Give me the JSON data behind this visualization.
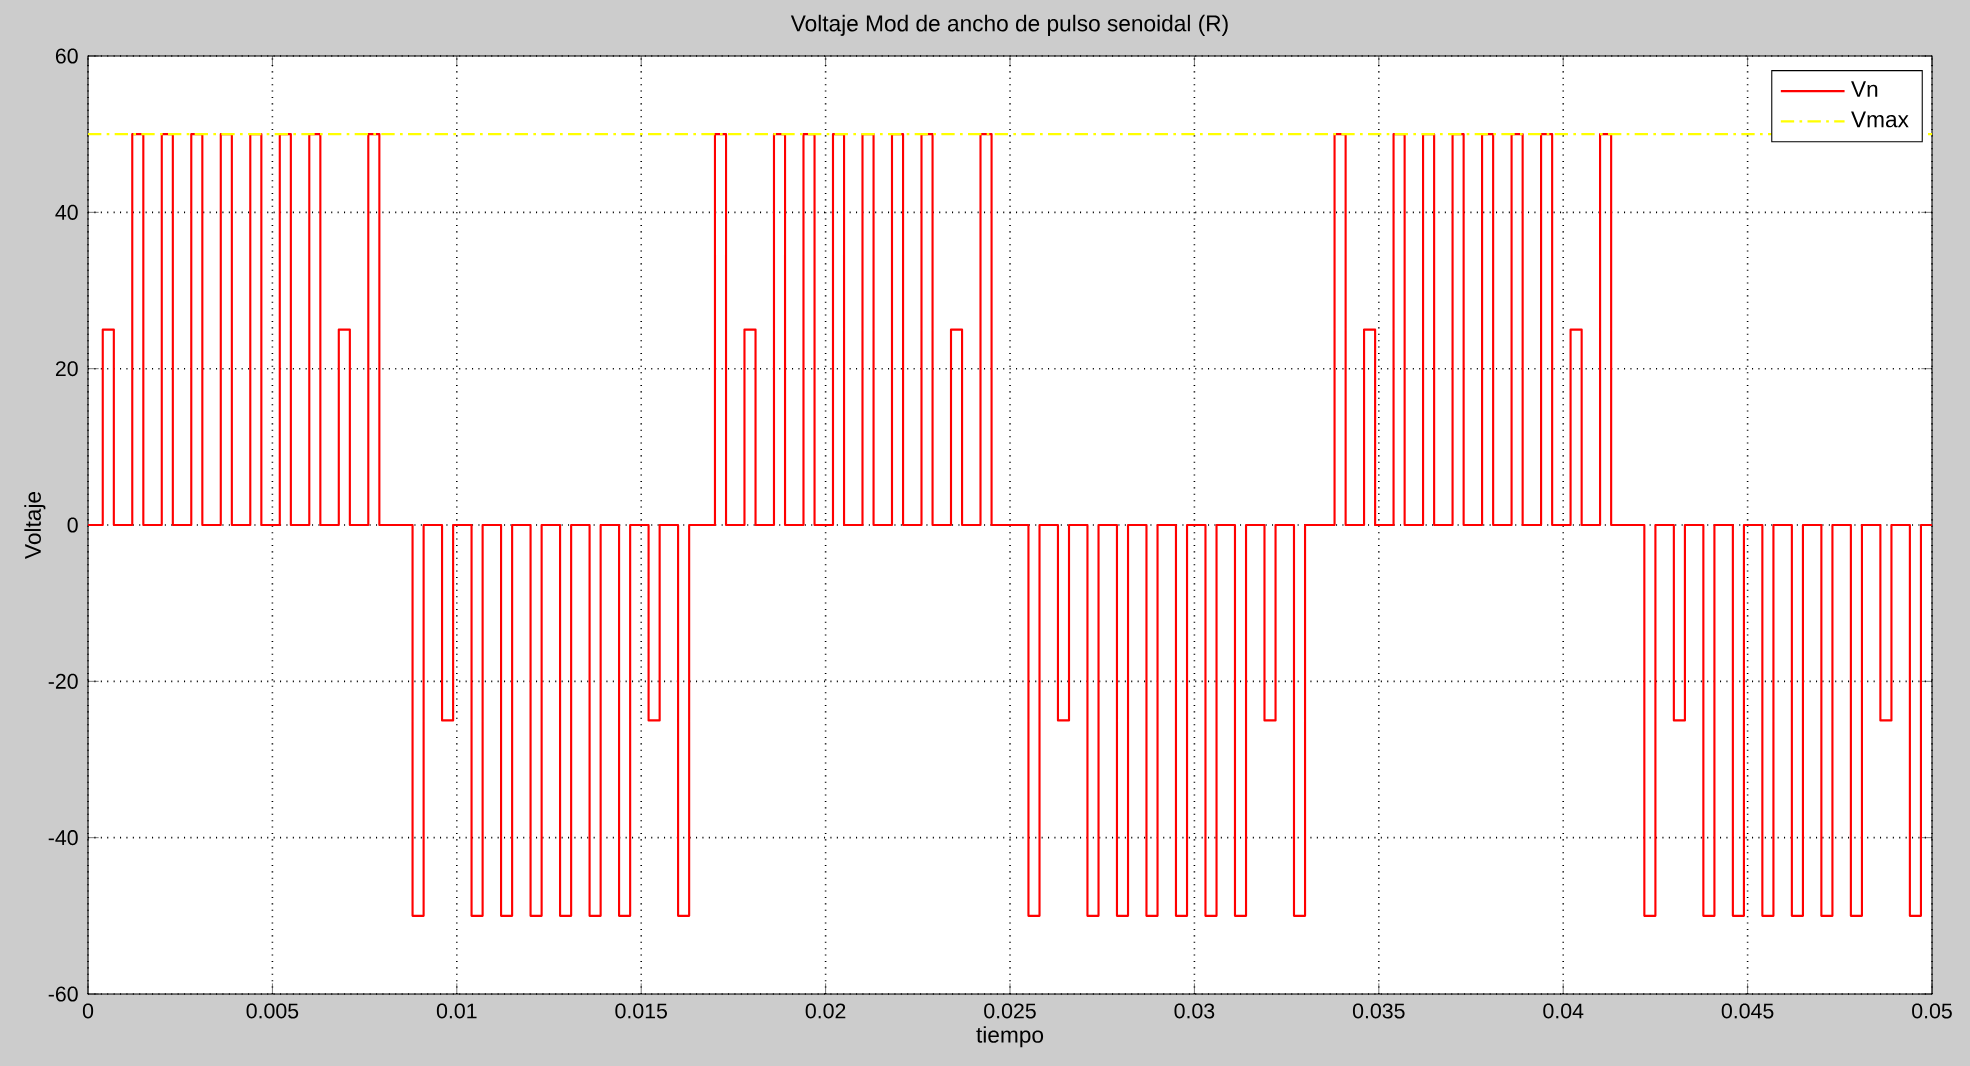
{
  "chart_data": {
    "type": "line",
    "title": "Voltaje Mod de ancho de pulso senoidal (R)",
    "xlabel": "tiempo",
    "ylabel": "Voltaje",
    "xlim": [
      0,
      0.05
    ],
    "ylim": [
      -60,
      60
    ],
    "xticks": [
      0,
      0.005,
      0.01,
      0.015,
      0.02,
      0.025,
      0.03,
      0.035,
      0.04,
      0.045,
      0.05
    ],
    "yticks": [
      -60,
      -40,
      -20,
      0,
      20,
      40,
      60
    ],
    "grid": true,
    "legend": "top right",
    "series": [
      {
        "name": "Vn",
        "type": "step",
        "color": "#ff0000",
        "line_style": "solid",
        "x": [
          0,
          0.0004,
          0.0007,
          0.0012,
          0.0015,
          0.002,
          0.0023,
          0.0028,
          0.0031,
          0.0036,
          0.0039,
          0.0044,
          0.0047,
          0.0052,
          0.0055,
          0.006,
          0.0063,
          0.0068,
          0.0071,
          0.0076,
          0.0079,
          0.0088,
          0.0091,
          0.0096,
          0.0099,
          0.0104,
          0.0107,
          0.0112,
          0.0115,
          0.012,
          0.0123,
          0.0128,
          0.0131,
          0.0136,
          0.0139,
          0.0144,
          0.0147,
          0.0152,
          0.0155,
          0.016,
          0.0163,
          0.017,
          0.0173,
          0.0178,
          0.0181,
          0.0186,
          0.0189,
          0.0194,
          0.0197,
          0.0202,
          0.0205,
          0.021,
          0.0213,
          0.0218,
          0.0221,
          0.0226,
          0.0229,
          0.0234,
          0.0237,
          0.0242,
          0.0245,
          0.0255,
          0.0258,
          0.0263,
          0.0266,
          0.0271,
          0.0274,
          0.0279,
          0.0282,
          0.0287,
          0.029,
          0.0295,
          0.0298,
          0.0303,
          0.0306,
          0.0311,
          0.0314,
          0.0319,
          0.0322,
          0.0327,
          0.033,
          0.0338,
          0.0341,
          0.0346,
          0.0349,
          0.0354,
          0.0357,
          0.0362,
          0.0365,
          0.037,
          0.0373,
          0.0378,
          0.0381,
          0.0386,
          0.0389,
          0.0394,
          0.0397,
          0.0402,
          0.0405,
          0.041,
          0.0413,
          0.0422,
          0.0425,
          0.043,
          0.0433,
          0.0438,
          0.0441,
          0.0446,
          0.0449,
          0.0454,
          0.0457,
          0.0462,
          0.0465,
          0.047,
          0.0473,
          0.0478,
          0.0481,
          0.0486,
          0.0489,
          0.0494,
          0.0497,
          0.05
        ],
        "values": [
          0,
          25,
          0,
          50,
          0,
          50,
          0,
          50,
          0,
          50,
          0,
          50,
          0,
          50,
          0,
          50,
          0,
          25,
          0,
          50,
          0,
          -50,
          0,
          -25,
          0,
          -50,
          0,
          -50,
          0,
          -50,
          0,
          -50,
          0,
          -50,
          0,
          -50,
          0,
          -25,
          0,
          -50,
          0,
          50,
          0,
          25,
          0,
          50,
          0,
          50,
          0,
          50,
          0,
          50,
          0,
          50,
          0,
          50,
          0,
          25,
          0,
          50,
          0,
          -50,
          0,
          -25,
          0,
          -50,
          0,
          -50,
          0,
          -50,
          0,
          -50,
          0,
          -50,
          0,
          -50,
          0,
          -25,
          0,
          -50,
          0,
          50,
          0,
          25,
          0,
          50,
          0,
          50,
          0,
          50,
          0,
          50,
          0,
          50,
          0,
          50,
          0,
          25,
          0,
          50,
          0,
          -50,
          0,
          -25,
          0,
          -50,
          0,
          -50,
          0,
          -50,
          0,
          -50,
          0,
          -50,
          0,
          -50,
          0,
          -25,
          0,
          -50,
          0,
          0
        ]
      },
      {
        "name": "Vmax",
        "color": "#ffff00",
        "line_style": "dashdot",
        "x": [
          0,
          0.05
        ],
        "values": [
          50,
          50
        ]
      }
    ]
  }
}
